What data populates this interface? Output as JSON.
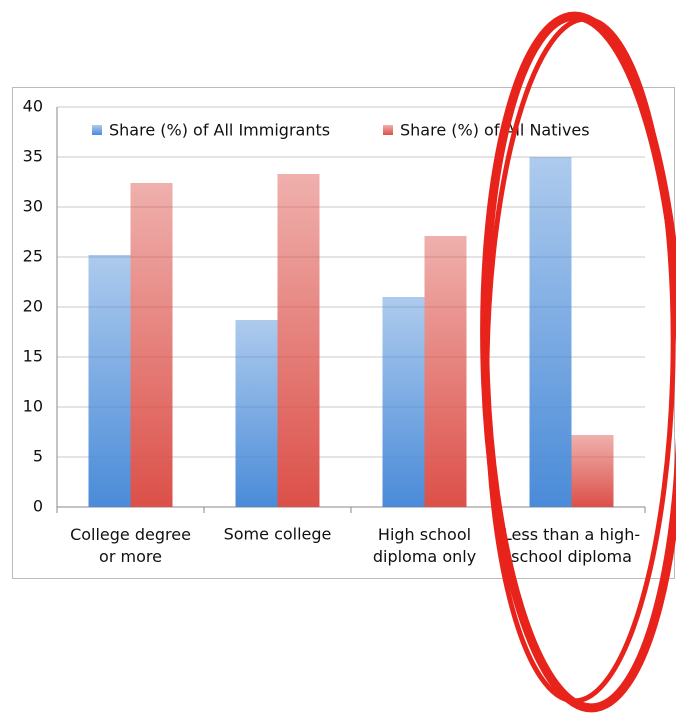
{
  "chart_data": {
    "type": "bar",
    "categories": [
      "College degree\nor more",
      "Some college",
      "High school\ndiploma only",
      "Less than a high-\nschool diploma"
    ],
    "series": [
      {
        "name": "Share (%) of All Immigrants",
        "color": "#4a8bd8",
        "values": [
          25.2,
          18.7,
          21.0,
          35.0
        ]
      },
      {
        "name": "Share (%) of All Natives",
        "color": "#dc5049",
        "values": [
          32.4,
          33.3,
          27.1,
          7.2
        ]
      }
    ],
    "ylim": [
      0,
      40
    ],
    "yticks": [
      0,
      5,
      10,
      15,
      20,
      25,
      30,
      35,
      40
    ],
    "grid": true,
    "legend": "top"
  }
}
